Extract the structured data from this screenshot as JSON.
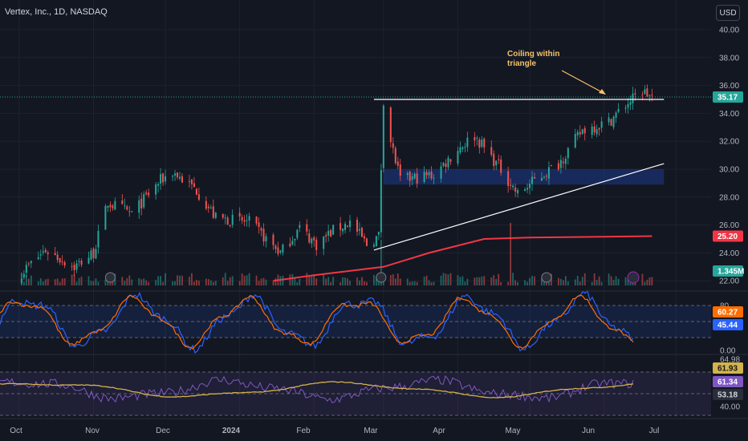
{
  "header": {
    "symbol_title": "Vertex, Inc., 1D, NASDAQ",
    "currency_button": "USD"
  },
  "annotation": {
    "line1": "Coiling within",
    "line2": "triangle"
  },
  "colors": {
    "up": "#26a69a",
    "down": "#ef5350",
    "ma": "#f23645",
    "stoch_k": "#2962ff",
    "stoch_d": "#ff6d00",
    "rsi": "#7e57c2",
    "rsi_ma": "#d4b24c",
    "support_zone": "#1e3a8a"
  },
  "chart_data": [
    {
      "type": "candlestick",
      "title": "Vertex, Inc., 1D, NASDAQ",
      "y_ticks": [
        "40.00",
        "38.00",
        "36.00",
        "34.00",
        "32.00",
        "30.00",
        "28.00",
        "26.00",
        "24.00",
        "22.00"
      ],
      "ylim": [
        22,
        41
      ],
      "x_ticks": [
        "Oct",
        "Nov",
        "Dec",
        "2024",
        "Feb",
        "Mar",
        "Apr",
        "May",
        "Jun",
        "Jul"
      ],
      "last_price": "35.17",
      "ma_value": "25.20",
      "volume_label": "1.345M",
      "price_waypoints": [
        [
          "2023-10-02",
          22.6
        ],
        [
          "2023-10-12",
          24.2
        ],
        [
          "2023-10-24",
          23.0
        ],
        [
          "2023-11-01",
          24.0
        ],
        [
          "2023-11-07",
          27.6
        ],
        [
          "2023-11-17",
          26.8
        ],
        [
          "2023-11-29",
          29.2
        ],
        [
          "2023-12-04",
          29.8
        ],
        [
          "2023-12-14",
          28.5
        ],
        [
          "2023-12-22",
          26.5
        ],
        [
          "2024-01-05",
          26.2
        ],
        [
          "2024-01-12",
          25.0
        ],
        [
          "2024-01-18",
          24.0
        ],
        [
          "2024-01-26",
          25.8
        ],
        [
          "2024-02-02",
          24.6
        ],
        [
          "2024-02-09",
          25.6
        ],
        [
          "2024-02-16",
          26.2
        ],
        [
          "2024-02-23",
          24.6
        ],
        [
          "2024-02-28",
          25.2
        ],
        [
          "2024-03-01",
          35.0
        ],
        [
          "2024-03-04",
          32.0
        ],
        [
          "2024-03-08",
          29.2
        ],
        [
          "2024-03-22",
          29.6
        ],
        [
          "2024-04-02",
          31.6
        ],
        [
          "2024-04-08",
          32.4
        ],
        [
          "2024-04-19",
          30.0
        ],
        [
          "2024-04-26",
          28.2
        ],
        [
          "2024-05-03",
          29.2
        ],
        [
          "2024-05-13",
          30.4
        ],
        [
          "2024-05-23",
          32.8
        ],
        [
          "2024-06-03",
          33.4
        ],
        [
          "2024-06-10",
          34.6
        ],
        [
          "2024-06-17",
          35.6
        ],
        [
          "2024-06-21",
          35.17
        ]
      ],
      "moving_average_waypoints": [
        [
          "2024-01-15",
          22.0
        ],
        [
          "2024-02-01",
          22.4
        ],
        [
          "2024-03-01",
          23.0
        ],
        [
          "2024-03-20",
          24.0
        ],
        [
          "2024-04-12",
          25.0
        ],
        [
          "2024-05-01",
          25.1
        ],
        [
          "2024-06-21",
          25.2
        ]
      ],
      "resistance_line": {
        "from": "2024-02-26",
        "to": "2024-06-26",
        "price": 35.0
      },
      "rising_trendline": {
        "from": [
          "2024-02-26",
          24.2
        ],
        "to": [
          "2024-06-26",
          30.4
        ]
      },
      "support_zone": {
        "from": "2024-03-01",
        "to": "2024-06-26",
        "low": 28.9,
        "high": 30.0
      },
      "earnings_markers": [
        "2023-11-08",
        "2024-02-29",
        "2024-05-08"
      ],
      "volume_spikes": [
        [
          "2024-02-29",
          2.2
        ],
        [
          "2024-04-23",
          3.0
        ]
      ]
    },
    {
      "type": "line",
      "name": "stochastic",
      "y_ticks": [
        "80",
        "0.00"
      ],
      "series": [
        {
          "values_label": "60.27"
        },
        {
          "values_label": "45.44"
        }
      ]
    },
    {
      "type": "line",
      "name": "rsi",
      "y_ticks": [
        "64.98",
        "40.00"
      ],
      "series": [
        {
          "values_label": "61.93"
        },
        {
          "values_label": "61.34"
        },
        {
          "values_label": "53.18"
        }
      ]
    }
  ]
}
